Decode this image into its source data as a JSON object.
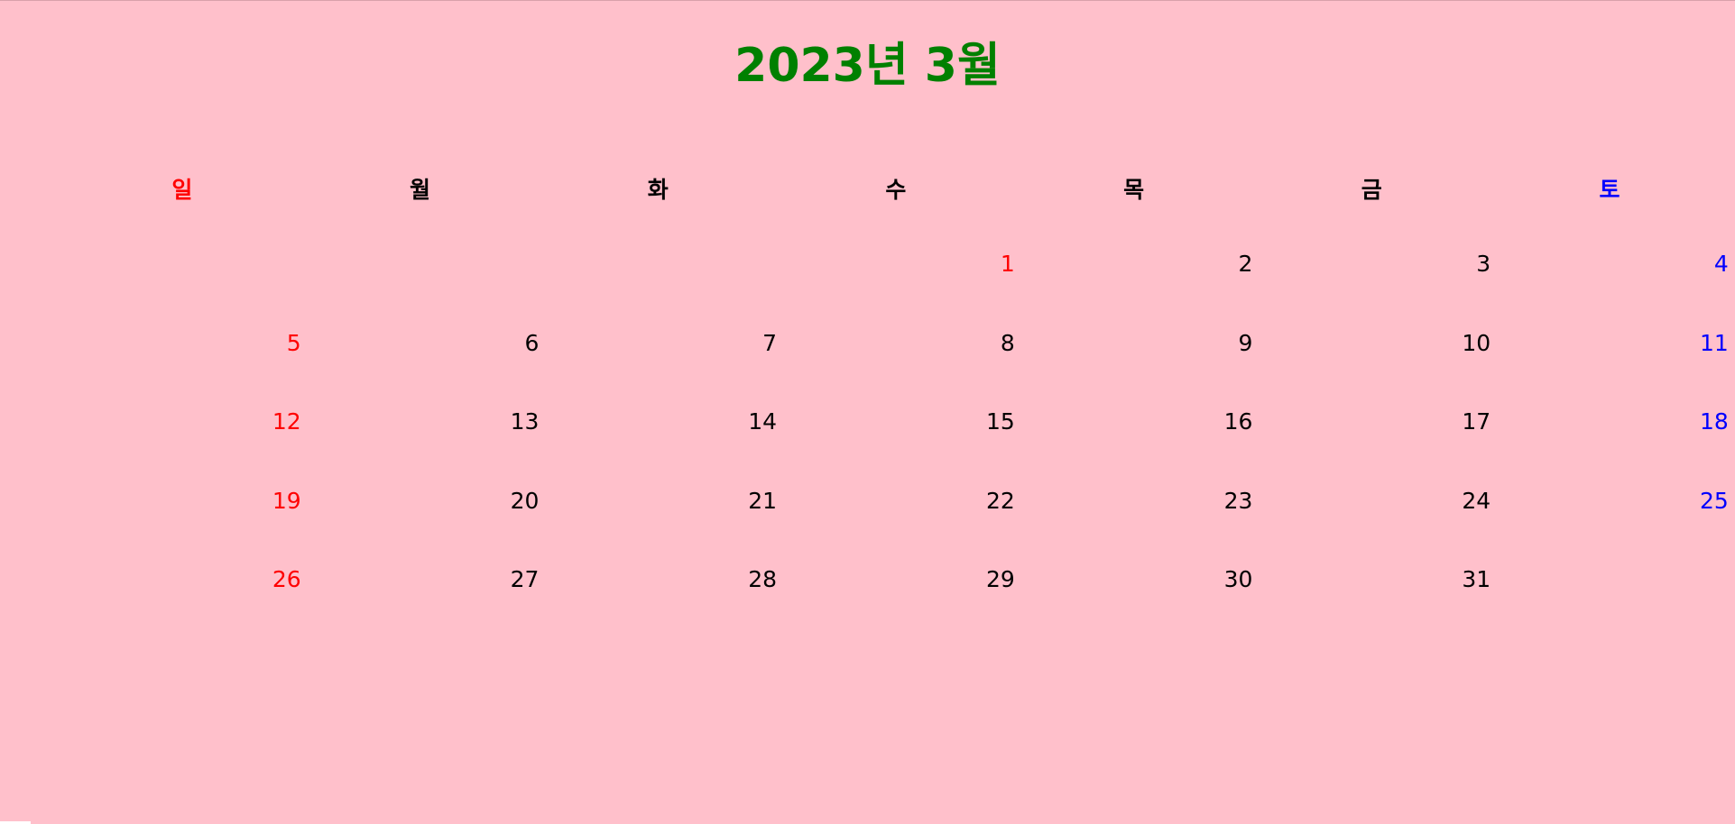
{
  "calendar": {
    "title": "2023년 3월",
    "weekdays": [
      "일",
      "월",
      "화",
      "수",
      "목",
      "금",
      "토"
    ],
    "colors": {
      "background": "#ffc0cb",
      "title": "#008000",
      "sunday": "#ff0000",
      "saturday": "#0000ff",
      "weekday": "#000000"
    },
    "weeks": [
      [
        "",
        "",
        "",
        "1",
        "2",
        "3",
        "4"
      ],
      [
        "5",
        "6",
        "7",
        "8",
        "9",
        "10",
        "11"
      ],
      [
        "12",
        "13",
        "14",
        "15",
        "16",
        "17",
        "18"
      ],
      [
        "19",
        "20",
        "21",
        "22",
        "23",
        "24",
        "25"
      ],
      [
        "26",
        "27",
        "28",
        "29",
        "30",
        "31",
        ""
      ]
    ]
  }
}
